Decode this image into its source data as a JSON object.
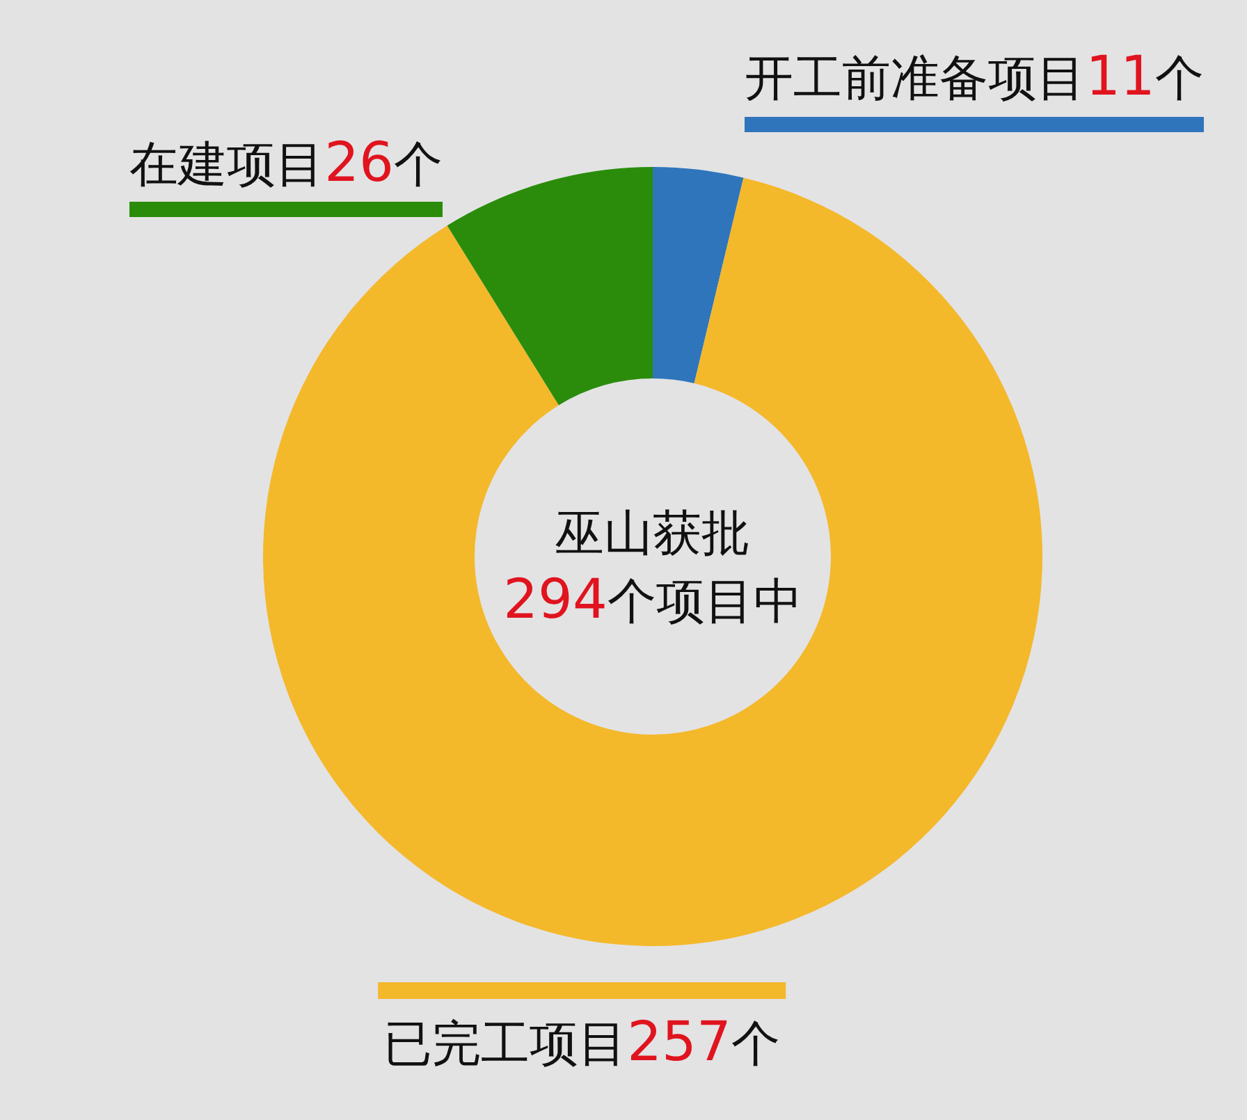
{
  "chart_data": {
    "type": "donut",
    "title": "巫山获批",
    "subtitle": "294个项目中",
    "categories": [
      "开工前准备项目",
      "已完工项目",
      "在建项目"
    ],
    "values": [
      11,
      257,
      26
    ],
    "colors": [
      "#2f75bb",
      "#f4b82b",
      "#2a8c0a"
    ],
    "value_labels": [
      "11个",
      "257个",
      "26个"
    ]
  }
}
